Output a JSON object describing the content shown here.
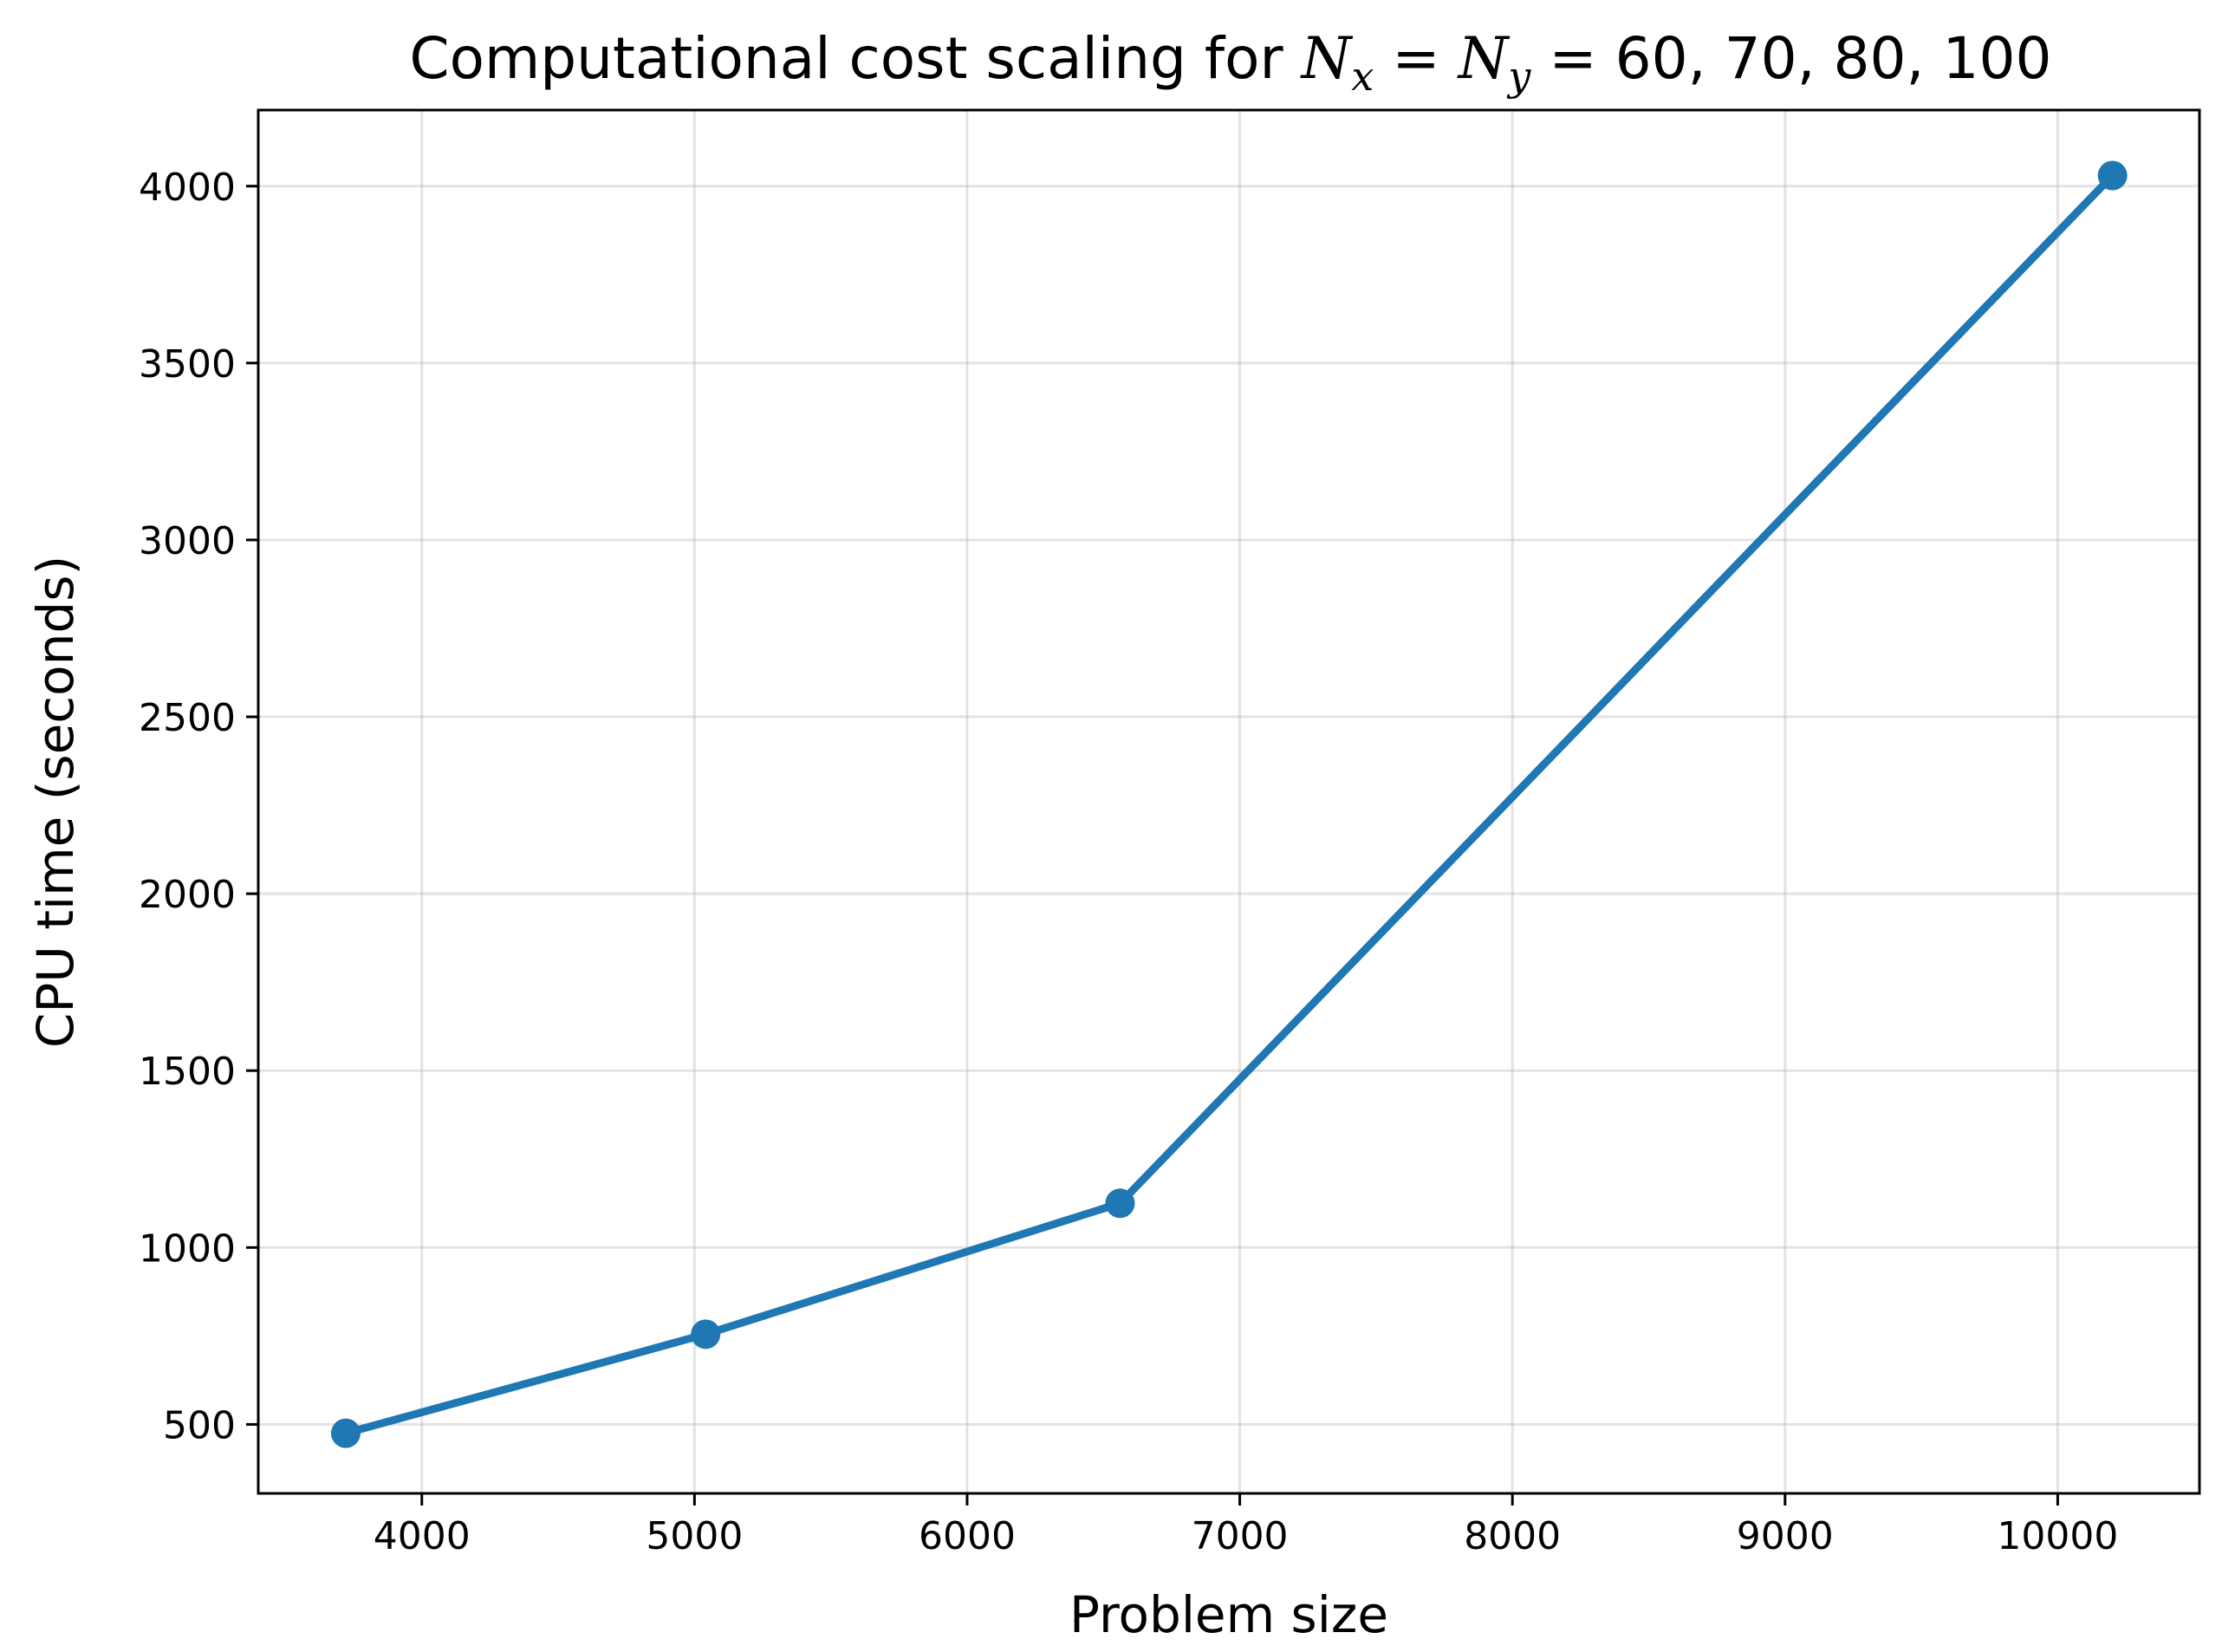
{
  "chart_data": {
    "type": "line",
    "title": {
      "prefix": "Computational cost scaling for ",
      "var1": "N",
      "sub1": "x",
      "eq1": " = ",
      "var2": "N",
      "sub2": "y",
      "eq2": " = ",
      "values": "60, 70, 80, 100"
    },
    "xlabel": "Problem size",
    "ylabel": "CPU time (seconds)",
    "x": [
      3721,
      5041,
      6561,
      10201
    ],
    "series": [
      {
        "values": [
          475,
          755,
          1125,
          4030
        ],
        "color": "#1f77b4",
        "marker": "circle"
      }
    ],
    "xlim": [
      3400,
      10520
    ],
    "ylim": [
      305,
      4215
    ],
    "xticks": [
      4000,
      5000,
      6000,
      7000,
      8000,
      9000,
      10000
    ],
    "xtick_labels": [
      "4000",
      "5000",
      "6000",
      "7000",
      "8000",
      "9000",
      "10000"
    ],
    "yticks": [
      500,
      1000,
      1500,
      2000,
      2500,
      3000,
      3500,
      4000
    ],
    "ytick_labels": [
      "500",
      "1000",
      "1500",
      "2000",
      "2500",
      "3000",
      "3500",
      "4000"
    ],
    "grid": true,
    "legend": "none"
  }
}
